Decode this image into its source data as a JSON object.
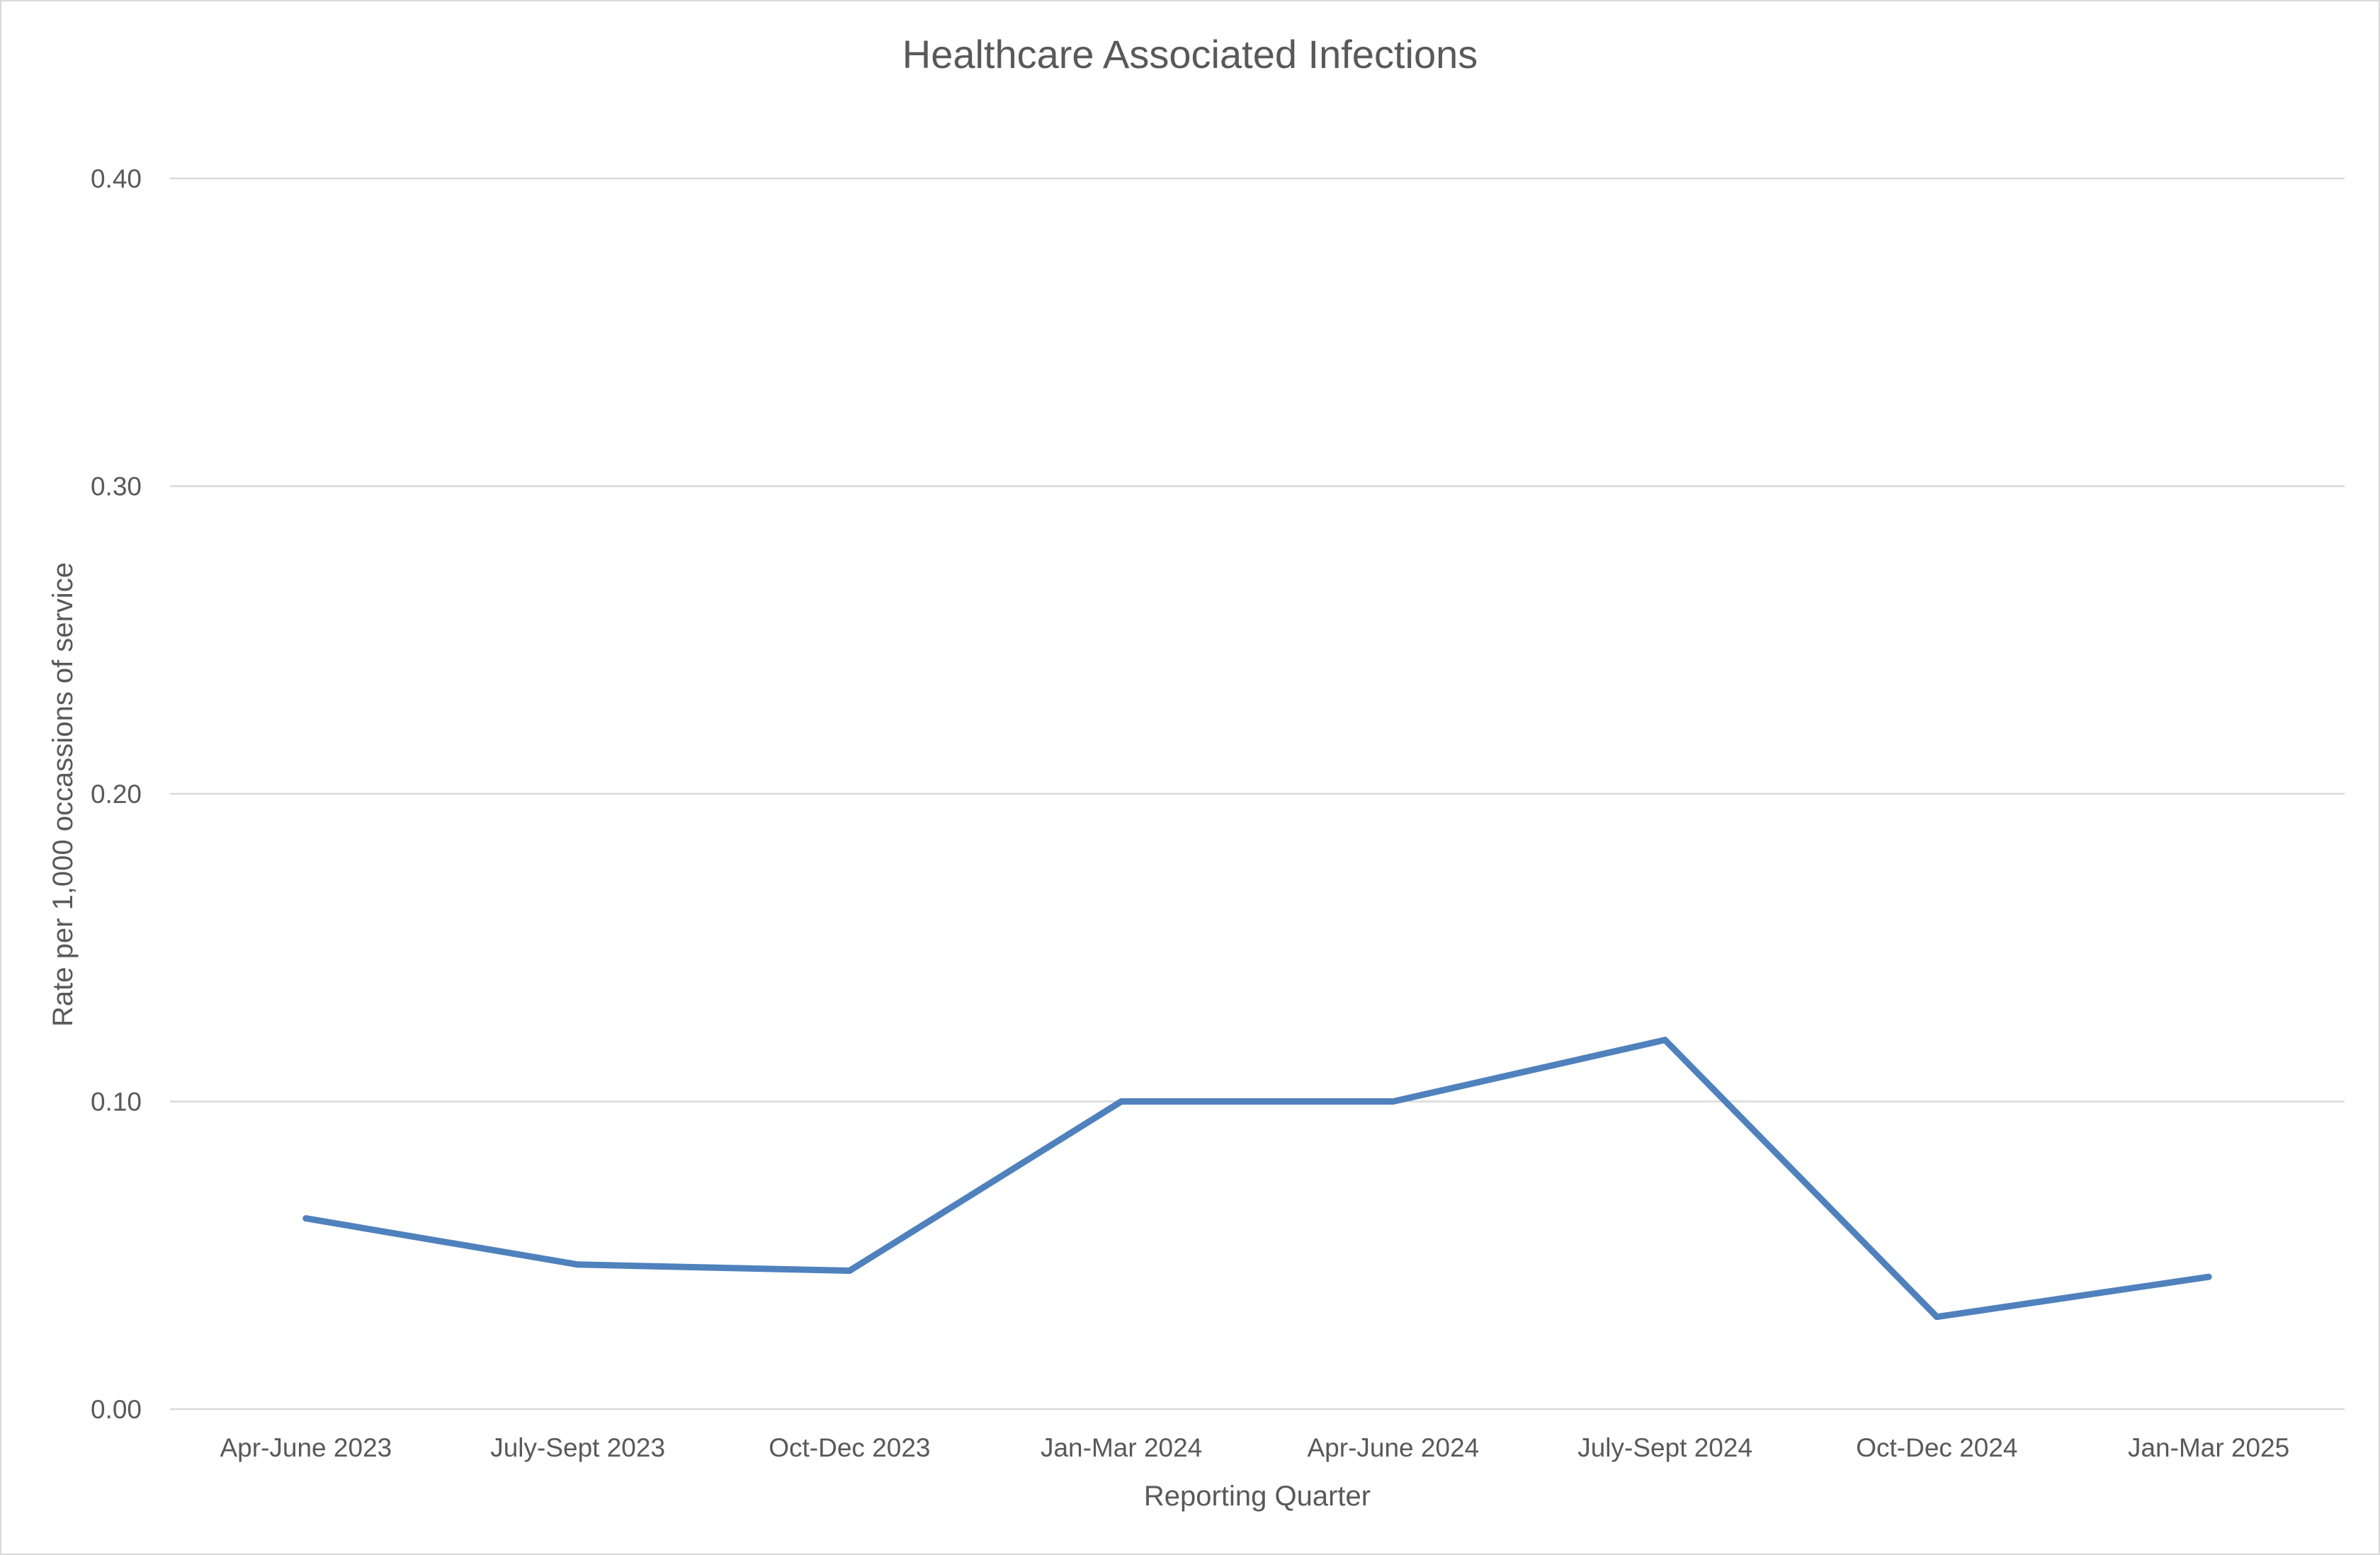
{
  "chart_data": {
    "type": "line",
    "title": "Healthcare Associated Infections",
    "xlabel": "Reporting Quarter",
    "ylabel": "Rate per 1,000 occassions of service",
    "categories": [
      "Apr-June 2023",
      "July-Sept 2023",
      "Oct-Dec 2023",
      "Jan-Mar 2024",
      "Apr-June 2024",
      "July-Sept 2024",
      "Oct-Dec 2024",
      "Jan-Mar 2025"
    ],
    "series": [
      {
        "values": [
          0.062,
          0.047,
          0.045,
          0.1,
          0.1,
          0.12,
          0.03,
          0.043
        ],
        "color": "#4f81bd"
      }
    ],
    "ylim": [
      0,
      0.4
    ],
    "yticks": [
      "0.00",
      "0.10",
      "0.20",
      "0.30",
      "0.40"
    ],
    "grid": true,
    "legend": "none"
  }
}
